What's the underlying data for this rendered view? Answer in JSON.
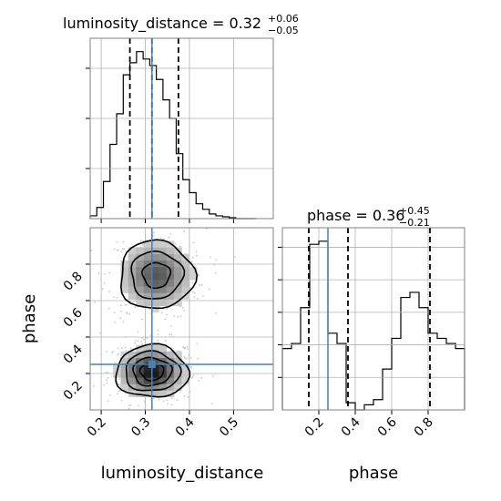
{
  "chart_data": {
    "type": "corner",
    "parameters": [
      "luminosity_distance",
      "phase"
    ],
    "truths": {
      "luminosity_distance": 0.315,
      "phase": 0.25
    },
    "colors": {
      "truth": "#4682b4",
      "hist": "#000000",
      "grid": "#b0b0b0"
    },
    "luminosity_distance": {
      "title_main": "luminosity_distance = 0.32",
      "title_plus": "+0.06",
      "title_minus": "−0.05",
      "xlabel": "luminosity_distance",
      "range": [
        0.175,
        0.59
      ],
      "ticks": [
        0.2,
        0.3,
        0.4,
        0.5
      ],
      "tick_labels": [
        "0.2",
        "0.3",
        "0.4",
        "0.5"
      ],
      "quantiles": [
        0.265,
        0.315,
        0.375
      ],
      "hist": {
        "edges": [
          0.175,
          0.19,
          0.205,
          0.22,
          0.235,
          0.25,
          0.265,
          0.28,
          0.295,
          0.31,
          0.325,
          0.34,
          0.355,
          0.37,
          0.385,
          0.4,
          0.415,
          0.43,
          0.445,
          0.46,
          0.475,
          0.49,
          0.505,
          0.52,
          0.535,
          0.55
        ],
        "values": [
          3,
          12,
          40,
          80,
          113,
          155,
          168,
          180,
          172,
          165,
          150,
          128,
          108,
          70,
          42,
          28,
          16,
          10,
          5,
          3,
          2,
          1,
          0,
          0,
          0
        ]
      }
    },
    "phase": {
      "title_main": "phase = 0.36",
      "title_plus": "+0.45",
      "title_minus": "−0.21",
      "xlabel": "phase",
      "ylabel": "phase",
      "range": [
        0.0,
        1.0
      ],
      "ticks": [
        0.2,
        0.4,
        0.6,
        0.8
      ],
      "tick_labels": [
        "0.2",
        "0.4",
        "0.6",
        "0.8"
      ],
      "quantiles": [
        0.145,
        0.36,
        0.81
      ],
      "hist": {
        "edges": [
          0.0,
          0.05,
          0.1,
          0.15,
          0.2,
          0.25,
          0.3,
          0.35,
          0.4,
          0.45,
          0.5,
          0.55,
          0.6,
          0.65,
          0.7,
          0.75,
          0.8,
          0.85,
          0.9,
          0.95,
          1.0
        ],
        "values": [
          60,
          65,
          100,
          162,
          165,
          75,
          65,
          7,
          0,
          5,
          10,
          40,
          70,
          110,
          115,
          100,
          75,
          70,
          65,
          60
        ]
      }
    },
    "joint": {
      "x_param": "luminosity_distance",
      "y_param": "phase",
      "x_range": [
        0.175,
        0.59
      ],
      "y_range": [
        0.0,
        1.0
      ],
      "x_ticks": [
        0.2,
        0.3,
        0.4,
        0.5
      ],
      "x_tick_labels": [
        "0.2",
        "0.3",
        "0.4",
        "0.5"
      ],
      "y_ticks": [
        0.2,
        0.4,
        0.6,
        0.8
      ],
      "y_tick_labels": [
        "0.2",
        "0.4",
        "0.6",
        "0.8"
      ],
      "modes": [
        {
          "x": 0.315,
          "y": 0.21,
          "sx": 0.04,
          "sy": 0.07,
          "weight": 1.0
        },
        {
          "x": 0.325,
          "y": 0.74,
          "sx": 0.045,
          "sy": 0.1,
          "weight": 0.7
        }
      ],
      "contour_levels": [
        0.12,
        0.3,
        0.55,
        0.8
      ],
      "grid": true
    }
  }
}
